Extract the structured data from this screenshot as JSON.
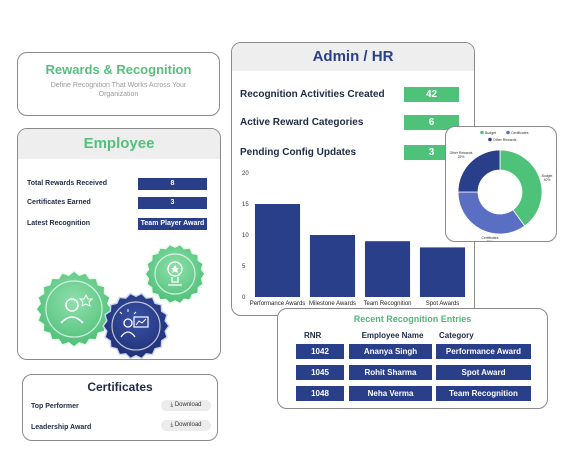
{
  "rewards": {
    "title": "Rewards & Recognition",
    "subtitle": "Define Recognition That Works Across Your Organization"
  },
  "employee": {
    "title": "Employee",
    "rows": [
      {
        "label": "Total Rewards Received",
        "value": "8"
      },
      {
        "label": "Certificates Earned",
        "value": "3"
      },
      {
        "label": "Latest Recognition",
        "value": "Team Player Award"
      }
    ]
  },
  "certificates": {
    "title": "Certificates",
    "items": [
      {
        "label": "Top Performer",
        "action": "Download"
      },
      {
        "label": "Leadership Award",
        "action": "Download"
      }
    ]
  },
  "admin": {
    "title": "Admin / HR",
    "rows": [
      {
        "label": "Recognition Activities Created",
        "value": "42"
      },
      {
        "label": "Active Reward Categories",
        "value": "6"
      },
      {
        "label": "Pending Config Updates",
        "value": "3"
      }
    ]
  },
  "recent": {
    "title": "Recent Recognition Entries",
    "headers": [
      "RNR",
      "Employee Name",
      "Category"
    ],
    "rows": [
      [
        "1042",
        "Ananya Singh",
        "Performance Award"
      ],
      [
        "1045",
        "Rohit Sharma",
        "Spot Award"
      ],
      [
        "1048",
        "Neha Verma",
        "Team Recognition"
      ]
    ]
  },
  "colors": {
    "green": "#4fc27a",
    "navy": "#2a3f8a",
    "blue": "#5a6fc4"
  },
  "chart_data": [
    {
      "type": "bar",
      "categories": [
        "Performance Awards",
        "Milestone Awards",
        "Team Recognition",
        "Spot Awards"
      ],
      "values": [
        15,
        10,
        9,
        8
      ],
      "ylim": [
        0,
        20
      ],
      "yticks": [
        0,
        5,
        10,
        15,
        20
      ],
      "color": "#2a3f8a"
    },
    {
      "type": "pie",
      "donut": true,
      "labels": [
        "Budget",
        "Certificates",
        "Other Rewards"
      ],
      "values": [
        40,
        35,
        25
      ],
      "slice_labels": [
        "Budget\n40%",
        "Certificates\n35%",
        "Other Rewards\n25%"
      ],
      "colors": [
        "#4fc27a",
        "#5a6fc4",
        "#2a3f8a"
      ],
      "legend": "top"
    }
  ]
}
